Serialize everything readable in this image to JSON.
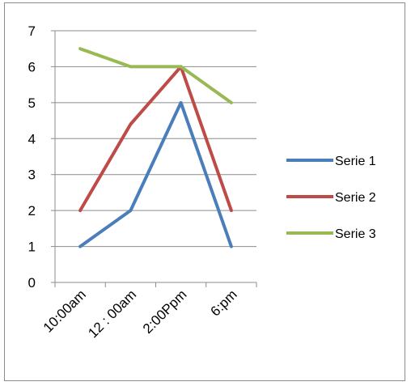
{
  "chart_data": {
    "type": "line",
    "title": "",
    "xlabel": "",
    "ylabel": "",
    "categories": [
      "10:00am",
      "12 : 00am",
      "2:00Ppm",
      "6:pm"
    ],
    "ylim": [
      0,
      7
    ],
    "yticks": [
      "0",
      "1",
      "2",
      "3",
      "4",
      "5",
      "6",
      "7"
    ],
    "grid": true,
    "legend_position": "right",
    "series": [
      {
        "name": "Serie 1",
        "color": "#4a7ebb",
        "values": [
          1,
          2,
          5,
          1
        ]
      },
      {
        "name": "Serie 2",
        "color": "#be4b48",
        "values": [
          2,
          4.4,
          6,
          2
        ]
      },
      {
        "name": "Serie 3",
        "color": "#98b954",
        "values": [
          6.5,
          6,
          6,
          5
        ]
      }
    ]
  }
}
